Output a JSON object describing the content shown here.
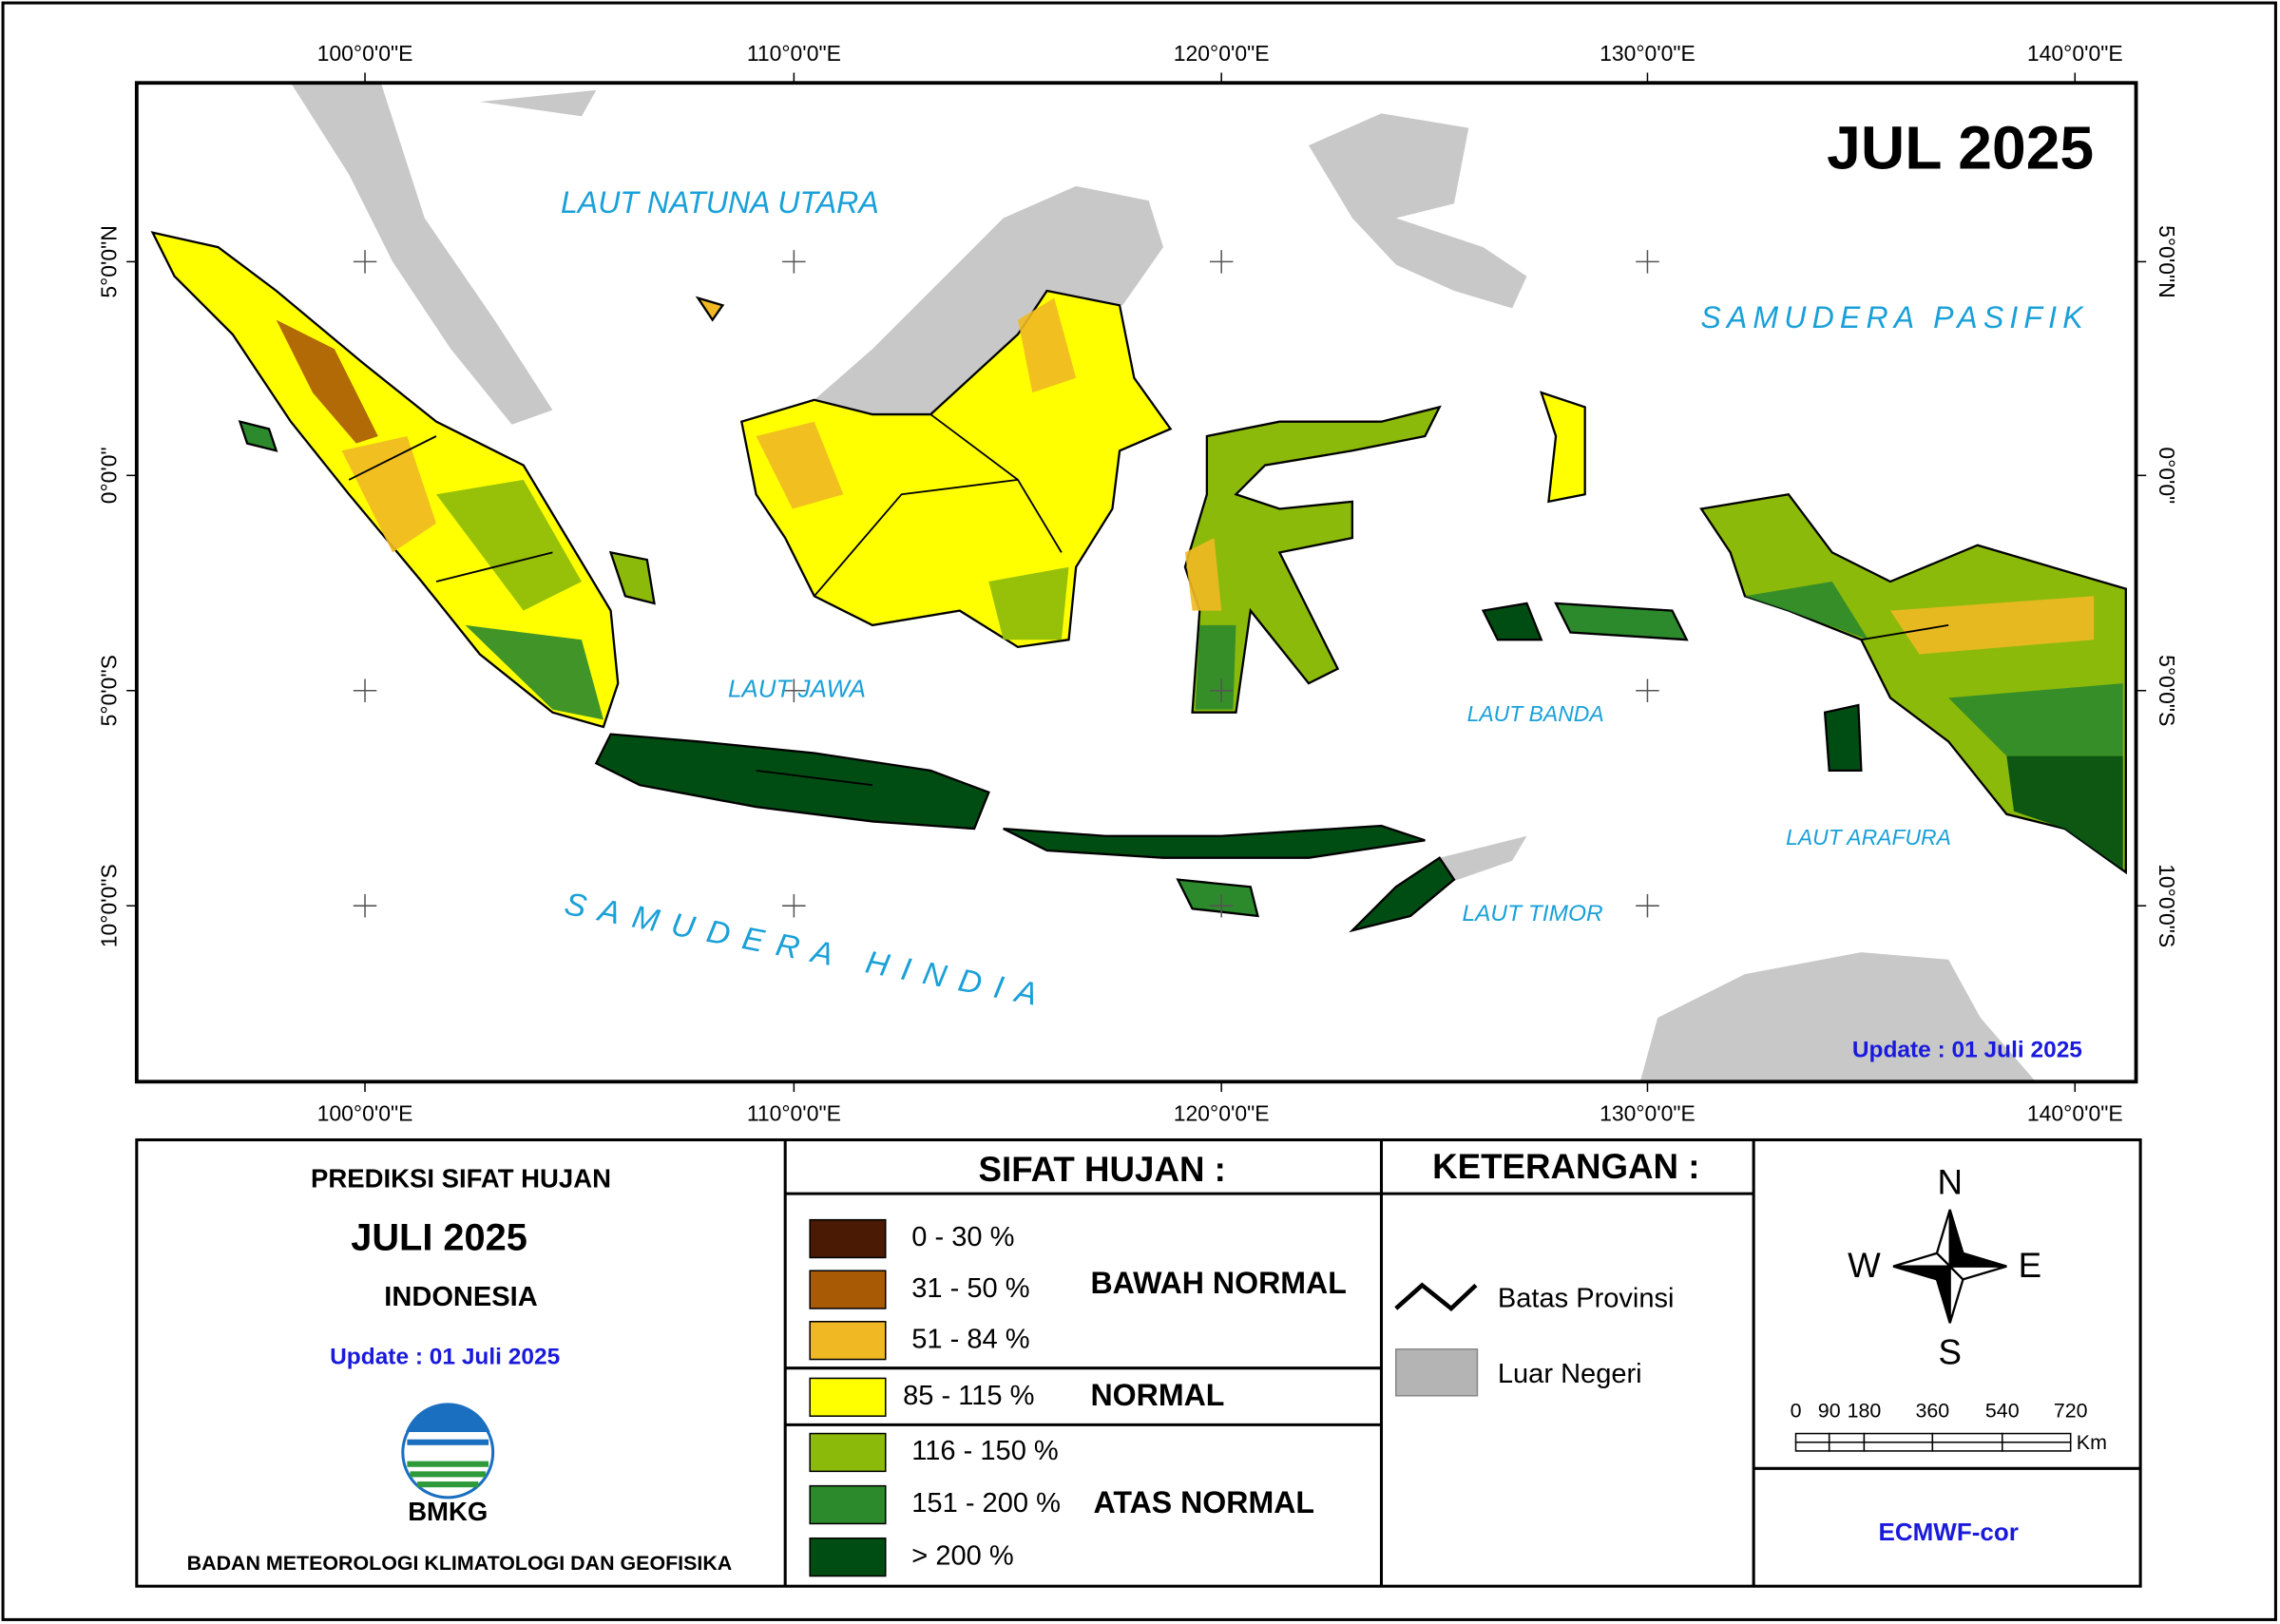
{
  "map": {
    "title": "JUL 2025",
    "update": "Update : 01 Juli  2025",
    "lon_labels": [
      "100°0'0\"E",
      "110°0'0\"E",
      "120°0'0\"E",
      "130°0'0\"E",
      "140°0'0\"E"
    ],
    "lat_labels": [
      "5°0'0\"N",
      "0°0'0\"",
      "5°0'0\"S",
      "10°0'0\"S"
    ],
    "sea_labels": [
      "LAUT NATUNA UTARA",
      "SAMUDERA PASIFIK",
      "LAUT JAWA",
      "LAUT BANDA",
      "LAUT ARAFURA",
      "LAUT TIMOR",
      "SAMUDERA HINDIA"
    ]
  },
  "info_panel": {
    "title": "PREDIKSI SIFAT HUJAN",
    "period": "JULI 2025",
    "region": "INDONESIA",
    "update": "Update : 01 Juli  2025",
    "logo_text": "BMKG",
    "agency": "BADAN METEOROLOGI KLIMATOLOGI DAN GEOFISIKA"
  },
  "legend": {
    "title": "SIFAT HUJAN :",
    "items": [
      {
        "color": "#4a1a05",
        "label": "0 - 30 %"
      },
      {
        "color": "#a85a05",
        "label": "31 - 50 %"
      },
      {
        "color": "#f0b923",
        "label": "51 - 84 %"
      },
      {
        "color": "#ffff00",
        "label": "85 - 115 %"
      },
      {
        "color": "#8cba0a",
        "label": "116 - 150 %"
      },
      {
        "color": "#2c8a2c",
        "label": "151 - 200 %"
      },
      {
        "color": "#004d14",
        "label": "> 200 %"
      }
    ],
    "groups": [
      "BAWAH NORMAL",
      "NORMAL",
      "ATAS NORMAL"
    ]
  },
  "keterangan": {
    "title": "KETERANGAN :",
    "items": [
      "Batas Provinsi",
      "Luar Negeri"
    ]
  },
  "compass": [
    "N",
    "W",
    "E",
    "S"
  ],
  "scale_bar": {
    "labels": [
      "0",
      "90",
      "180",
      "360",
      "540",
      "720"
    ],
    "unit": "Km"
  },
  "source": "ECMWF-cor"
}
